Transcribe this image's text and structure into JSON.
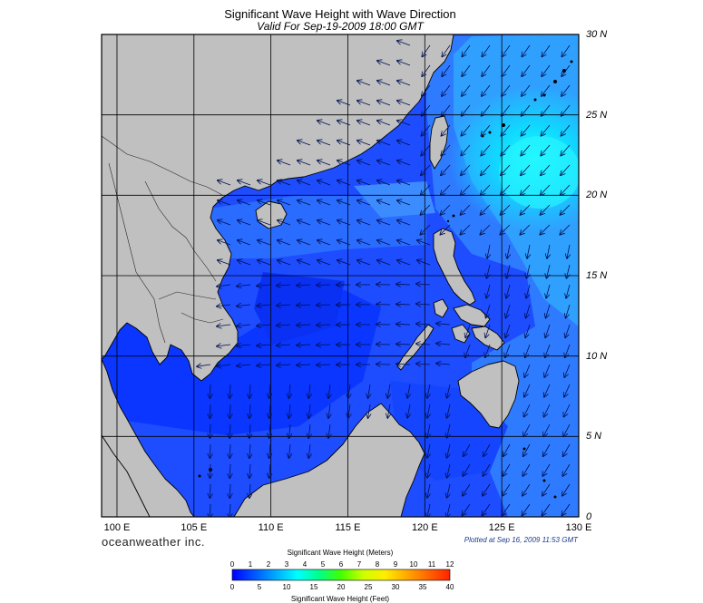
{
  "title": "Significant Wave Height with Wave Direction",
  "subtitle": "Valid For Sep-19-2009 18:00 GMT",
  "branding": "oceanweather inc.",
  "plotted_note": "Plotted at Sep 16, 2009 11:53 GMT",
  "map": {
    "lon_labels": [
      "100 E",
      "105 E",
      "110 E",
      "115 E",
      "120 E",
      "125 E",
      "130 E"
    ],
    "lat_labels": [
      "30 N",
      "25 N",
      "20 N",
      "15 N",
      "10 N",
      "5 N",
      "0"
    ],
    "lon_range": [
      99,
      130
    ],
    "lat_range": [
      0,
      30
    ],
    "grid": true,
    "land_color": "#c0c0c0",
    "deep_color": "#1e4cff"
  },
  "colorbar": {
    "meters_title": "Significant Wave Height (Meters)",
    "feet_title": "Significant Wave Height (Feet)",
    "meters_ticks": [
      "0",
      "1",
      "2",
      "3",
      "4",
      "5",
      "6",
      "7",
      "8",
      "9",
      "10",
      "11",
      "12"
    ],
    "feet_ticks": [
      "0",
      "5",
      "10",
      "15",
      "20",
      "25",
      "30",
      "35",
      "40"
    ],
    "colors": [
      "#0000ff",
      "#0055ff",
      "#00aaff",
      "#00ffff",
      "#00ff88",
      "#44ff00",
      "#ccff00",
      "#ffee00",
      "#ffaa00",
      "#ff6600",
      "#ff2200"
    ]
  }
}
